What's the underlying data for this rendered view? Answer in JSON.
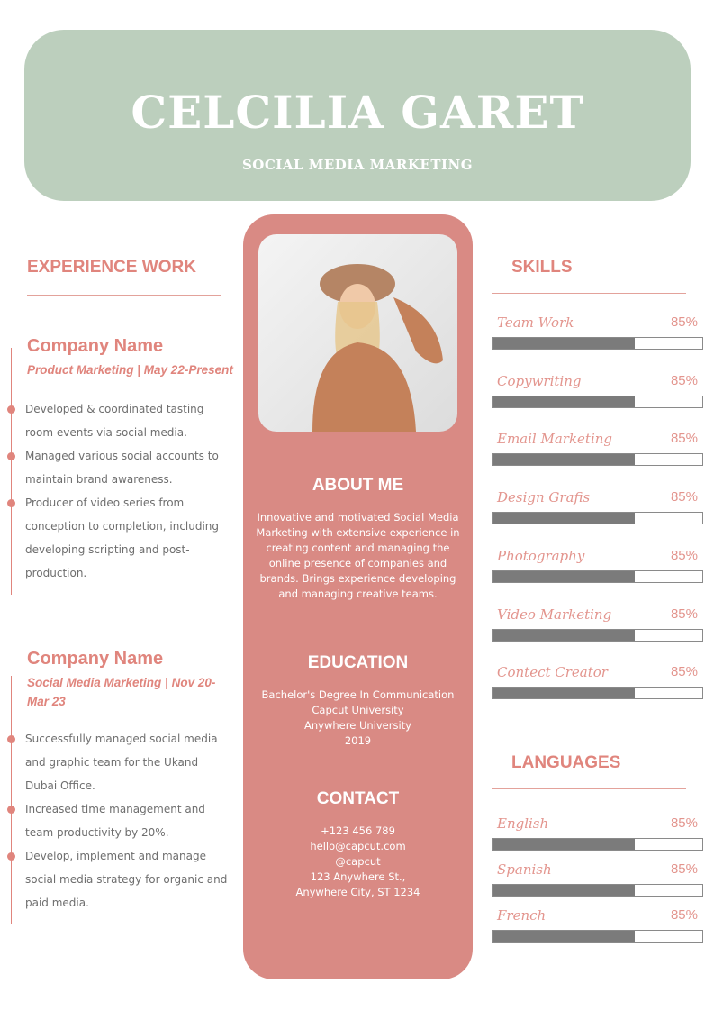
{
  "header": {
    "name": "CELCILIA GARET",
    "role": "SOCIAL MEDIA MARKETING"
  },
  "experience": {
    "title": "EXPERIENCE WORK",
    "jobs": [
      {
        "company": "Company Name",
        "role": "Product Marketing | May 22-Present",
        "bullets": [
          "Developed & coordinated tasting room events via social media.",
          "Managed various social accounts to maintain brand awareness.",
          "Producer of video series from conception to completion, including developing scripting and post-production."
        ]
      },
      {
        "company": "Company Name",
        "role": "Social Media Marketing | Nov 20-Mar 23",
        "bullets": [
          "Successfully managed social media and graphic team for the Ukand Dubai Office.",
          "Increased time management and team productivity by 20%.",
          "Develop, implement and manage social media strategy for organic and paid media."
        ]
      }
    ]
  },
  "about": {
    "title": "ABOUT ME",
    "text": "Innovative and motivated Social Media Marketing with extensive experience in creating content and managing the online presence of companies and brands. Brings experience developing and managing creative teams."
  },
  "education": {
    "title": "EDUCATION",
    "lines": [
      "Bachelor's Degree In Communication",
      "Capcut University",
      "Anywhere University",
      "2019"
    ]
  },
  "contact": {
    "title": "CONTACT",
    "lines": [
      "+123  456 789",
      "hello@capcut.com",
      "@capcut",
      "123 Anywhere St.,",
      "Anywhere City, ST 1234"
    ]
  },
  "skills": {
    "title": "SKILLS",
    "items": [
      {
        "name": "Team Work",
        "pct": "85%",
        "fill": 0.68
      },
      {
        "name": "Copywriting",
        "pct": "85%",
        "fill": 0.68
      },
      {
        "name": "Email Marketing",
        "pct": "85%",
        "fill": 0.68
      },
      {
        "name": "Design Grafis",
        "pct": "85%",
        "fill": 0.68
      },
      {
        "name": "Photography",
        "pct": "85%",
        "fill": 0.68
      },
      {
        "name": "Video Marketing",
        "pct": "85%",
        "fill": 0.68
      },
      {
        "name": "Contect Creator",
        "pct": "85%",
        "fill": 0.68
      }
    ]
  },
  "languages": {
    "title": "LANGUAGES",
    "items": [
      {
        "name": "English",
        "pct": "85%",
        "fill": 0.68
      },
      {
        "name": "Spanish",
        "pct": "85%",
        "fill": 0.68
      },
      {
        "name": "French",
        "pct": "85%",
        "fill": 0.68
      }
    ]
  },
  "colors": {
    "header": "#bccfbd",
    "accent": "#e0857d",
    "panel": "#d98a84",
    "bar": "#7b7b7b"
  }
}
